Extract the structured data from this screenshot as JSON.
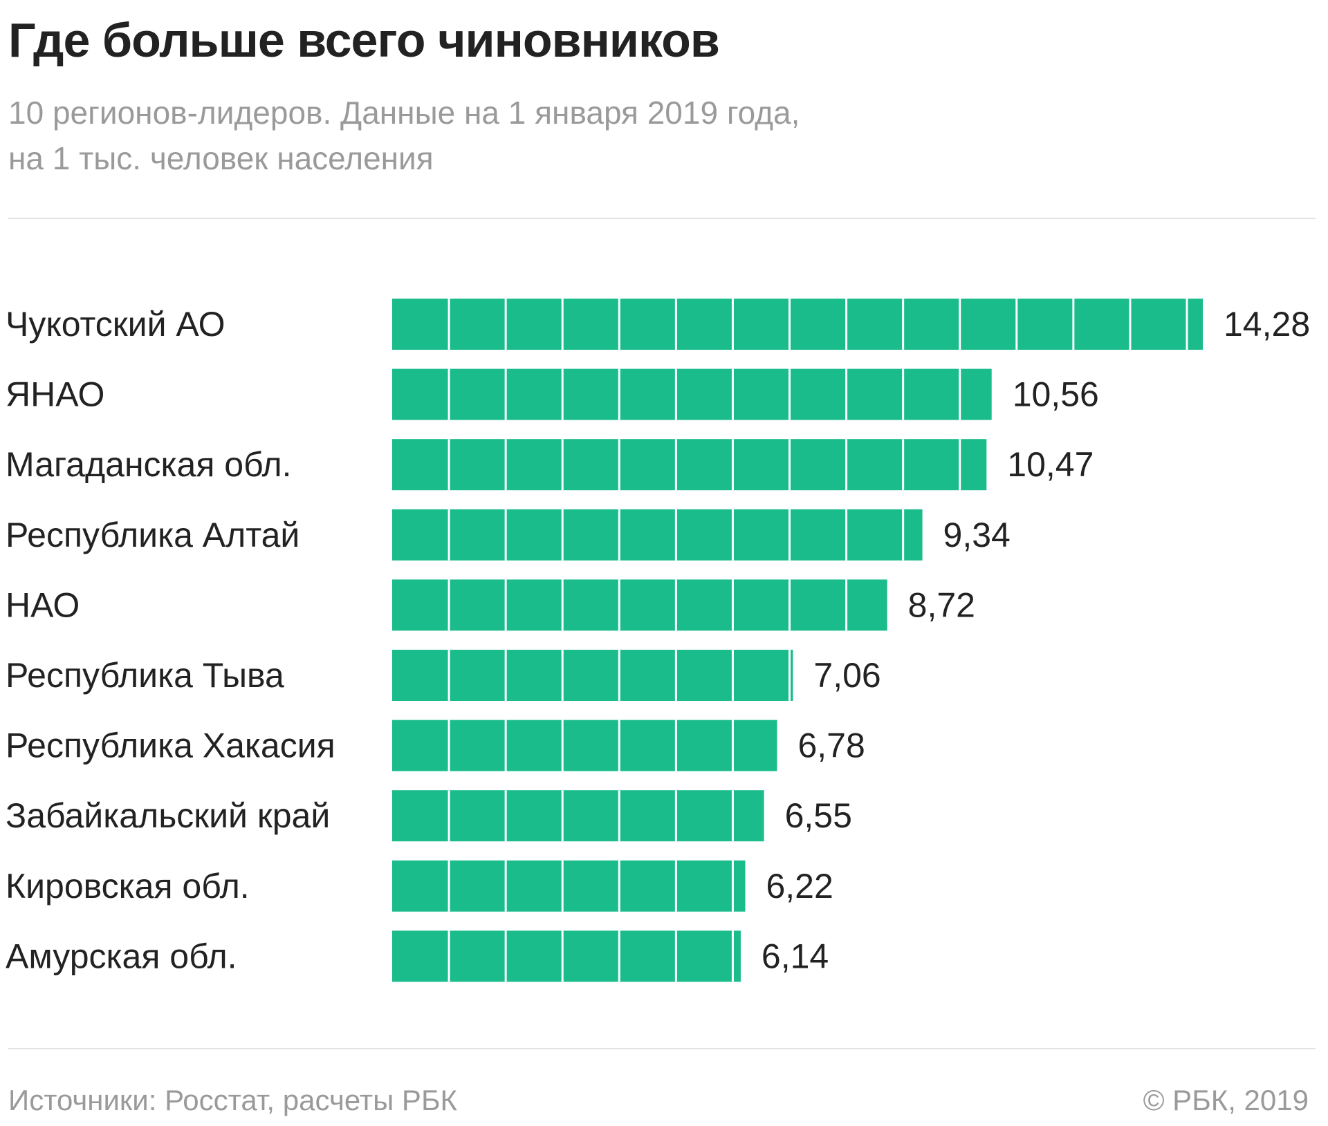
{
  "header": {
    "title": "Где больше всего чиновников",
    "subtitle_line1": "10 регионов-лидеров. Данные на 1 января 2019 года,",
    "subtitle_line2": "на 1 тыс. человек населения"
  },
  "footer": {
    "source": "Источники: Росстат, расчеты РБК",
    "copyright": "© РБК, 2019"
  },
  "colors": {
    "bar": "#1abc8c",
    "divider": "#ffffff",
    "text": "#222222",
    "muted": "#9a9a9a"
  },
  "chart_data": {
    "type": "bar",
    "orientation": "horizontal",
    "title": "Где больше всего чиновников",
    "categories": [
      "Чукотский АО",
      "ЯНАО",
      "Магаданская обл.",
      "Республика Алтай",
      "НАО",
      "Республика Тыва",
      "Республика Хакасия",
      "Забайкальский край",
      "Кировская обл.",
      "Амурская обл."
    ],
    "values": [
      14.28,
      10.56,
      10.47,
      9.34,
      8.72,
      7.06,
      6.78,
      6.55,
      6.22,
      6.14
    ],
    "value_labels": [
      "14,28",
      "10,56",
      "10,47",
      "9,34",
      "8,72",
      "7,06",
      "6,78",
      "6,55",
      "6,22",
      "6,14"
    ],
    "xlim": [
      0,
      14.28
    ],
    "segment_unit": 1,
    "grid": false,
    "legend": "none"
  }
}
